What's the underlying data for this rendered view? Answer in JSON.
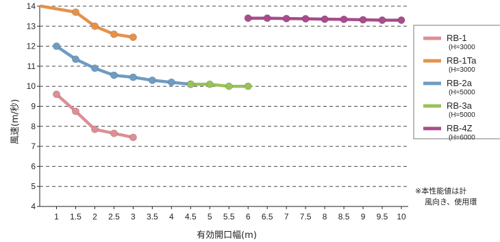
{
  "chart_data": {
    "type": "line",
    "title": "",
    "xlabel": "有効開口幅(m)",
    "ylabel": "風速(m/秒)",
    "xlim": [
      0.5,
      10
    ],
    "ylim": [
      4,
      14
    ],
    "x_ticks": [
      "1",
      "1.5",
      "2",
      "2.5",
      "3",
      "3.5",
      "4",
      "4.5",
      "5",
      "5.5",
      "6",
      "6.5",
      "7",
      "7.5",
      "8",
      "8.5",
      "9",
      "9.5",
      "10"
    ],
    "y_ticks": [
      "4",
      "5",
      "6",
      "7",
      "8",
      "9",
      "10",
      "11",
      "12",
      "13",
      "14"
    ],
    "grid": "horizontal dashed",
    "legend_position": "right",
    "series": [
      {
        "name": "RB-1",
        "sublabel": "(H=3000",
        "color": "#dd8e96",
        "points": [
          [
            1,
            9.6
          ],
          [
            1.5,
            8.75
          ],
          [
            2,
            7.85
          ],
          [
            2.5,
            7.65
          ],
          [
            3,
            7.45
          ]
        ]
      },
      {
        "name": "RB-1Ta",
        "sublabel": "(H=3000",
        "color": "#e6914a",
        "points": [
          [
            0.6,
            14.0
          ],
          [
            1.5,
            13.7
          ],
          [
            2,
            13.0
          ],
          [
            2.5,
            12.6
          ],
          [
            3,
            12.45
          ]
        ]
      },
      {
        "name": "RB-2a",
        "sublabel": "(H=5000",
        "color": "#6f9cc2",
        "points": [
          [
            1,
            12.0
          ],
          [
            1.5,
            11.35
          ],
          [
            2,
            10.9
          ],
          [
            2.5,
            10.55
          ],
          [
            3,
            10.45
          ],
          [
            3.5,
            10.3
          ],
          [
            4,
            10.2
          ],
          [
            4.5,
            10.1
          ]
        ]
      },
      {
        "name": "RB-3a",
        "sublabel": "(H=5000",
        "color": "#9bc15a",
        "points": [
          [
            4.5,
            10.1
          ],
          [
            5,
            10.1
          ],
          [
            5.5,
            10.0
          ],
          [
            6,
            10.0
          ]
        ]
      },
      {
        "name": "RB-4Z",
        "sublabel": "(H=6000",
        "color": "#a84c8c",
        "points": [
          [
            6,
            13.4
          ],
          [
            6.5,
            13.4
          ],
          [
            7,
            13.38
          ],
          [
            7.5,
            13.37
          ],
          [
            8,
            13.35
          ],
          [
            8.5,
            13.34
          ],
          [
            9,
            13.32
          ],
          [
            9.5,
            13.3
          ],
          [
            10,
            13.3
          ]
        ]
      }
    ]
  },
  "note": {
    "line1": "※本性能値は計",
    "line2": "風向き、使用環"
  }
}
